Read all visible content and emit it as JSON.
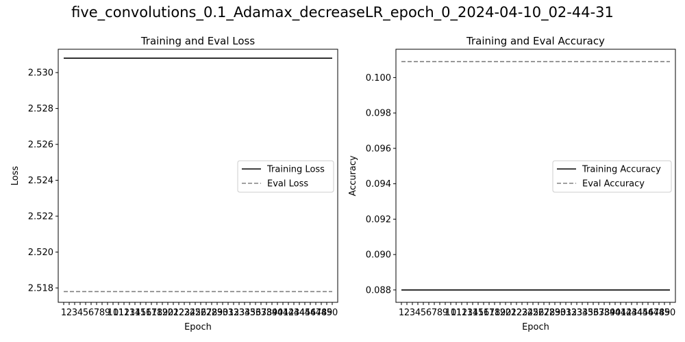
{
  "figure": {
    "suptitle": "five_convolutions_0.1_Adamax_decreaseLR_epoch_0_2024-04-10_02-44-31"
  },
  "chart_data": [
    {
      "type": "line",
      "title": "Training and Eval Loss",
      "xlabel": "Epoch",
      "ylabel": "Loss",
      "x": [
        1,
        2,
        3,
        4,
        5,
        6,
        7,
        8,
        9,
        10,
        11,
        12,
        13,
        14,
        15,
        16,
        17,
        18,
        19,
        20,
        21,
        22,
        23,
        24,
        25,
        26,
        27,
        28,
        29,
        30,
        31,
        32,
        33,
        34,
        35,
        36,
        37,
        38,
        39,
        40,
        41,
        42,
        43,
        44,
        45,
        46,
        47,
        48,
        49,
        50
      ],
      "ylim": [
        2.5172,
        2.5313
      ],
      "yticks": [
        2.518,
        2.52,
        2.522,
        2.524,
        2.526,
        2.528,
        2.53
      ],
      "ytick_labels": [
        "2.518",
        "2.520",
        "2.522",
        "2.524",
        "2.526",
        "2.528",
        "2.530"
      ],
      "legend_position": "center-right",
      "series": [
        {
          "name": "Training Loss",
          "style": "solid",
          "color": "#000000",
          "constant": 2.5308
        },
        {
          "name": "Eval Loss",
          "style": "dashed",
          "color": "#808080",
          "constant": 2.5178
        }
      ]
    },
    {
      "type": "line",
      "title": "Training and Eval Accuracy",
      "xlabel": "Epoch",
      "ylabel": "Accuracy",
      "x": [
        1,
        2,
        3,
        4,
        5,
        6,
        7,
        8,
        9,
        10,
        11,
        12,
        13,
        14,
        15,
        16,
        17,
        18,
        19,
        20,
        21,
        22,
        23,
        24,
        25,
        26,
        27,
        28,
        29,
        30,
        31,
        32,
        33,
        34,
        35,
        36,
        37,
        38,
        39,
        40,
        41,
        42,
        43,
        44,
        45,
        46,
        47,
        48,
        49,
        50
      ],
      "ylim": [
        0.0873,
        0.1016
      ],
      "yticks": [
        0.088,
        0.09,
        0.092,
        0.094,
        0.096,
        0.098,
        0.1
      ],
      "ytick_labels": [
        "0.088",
        "0.090",
        "0.092",
        "0.094",
        "0.096",
        "0.098",
        "0.100"
      ],
      "legend_position": "center-right",
      "series": [
        {
          "name": "Training Accuracy",
          "style": "solid",
          "color": "#000000",
          "constant": 0.088
        },
        {
          "name": "Eval Accuracy",
          "style": "dashed",
          "color": "#808080",
          "constant": 0.1009
        }
      ]
    }
  ]
}
